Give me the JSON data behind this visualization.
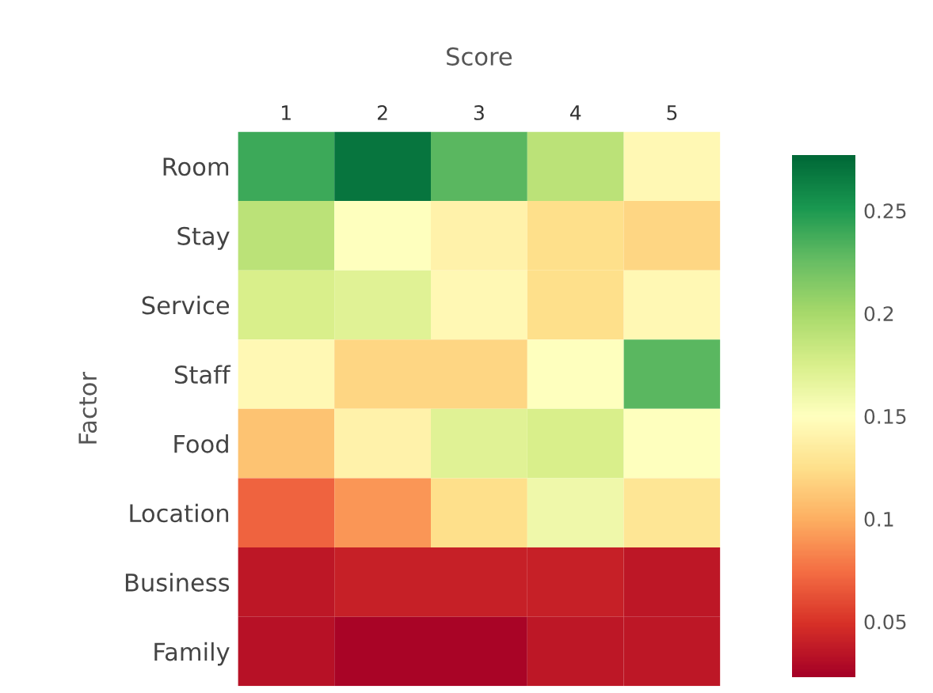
{
  "chart_data": {
    "type": "heatmap",
    "xlabel": "Score",
    "ylabel": "Factor",
    "categories": [
      "1",
      "2",
      "3",
      "4",
      "5"
    ],
    "y_categories": [
      "Room",
      "Stay",
      "Service",
      "Staff",
      "Food",
      "Location",
      "Business",
      "Family"
    ],
    "cells": [
      [
        0.24,
        0.27,
        0.23,
        0.19,
        0.145
      ],
      [
        0.19,
        0.15,
        0.14,
        0.125,
        0.12
      ],
      [
        0.175,
        0.17,
        0.145,
        0.125,
        0.145
      ],
      [
        0.145,
        0.12,
        0.12,
        0.15,
        0.23
      ],
      [
        0.11,
        0.14,
        0.17,
        0.175,
        0.15
      ],
      [
        0.07,
        0.09,
        0.125,
        0.16,
        0.13
      ],
      [
        0.035,
        0.04,
        0.04,
        0.04,
        0.035
      ],
      [
        0.032,
        0.025,
        0.025,
        0.035,
        0.035
      ]
    ],
    "clim": [
      0.023,
      0.277
    ],
    "cticks": [
      0.05,
      0.1,
      0.15,
      0.2,
      0.25
    ]
  }
}
